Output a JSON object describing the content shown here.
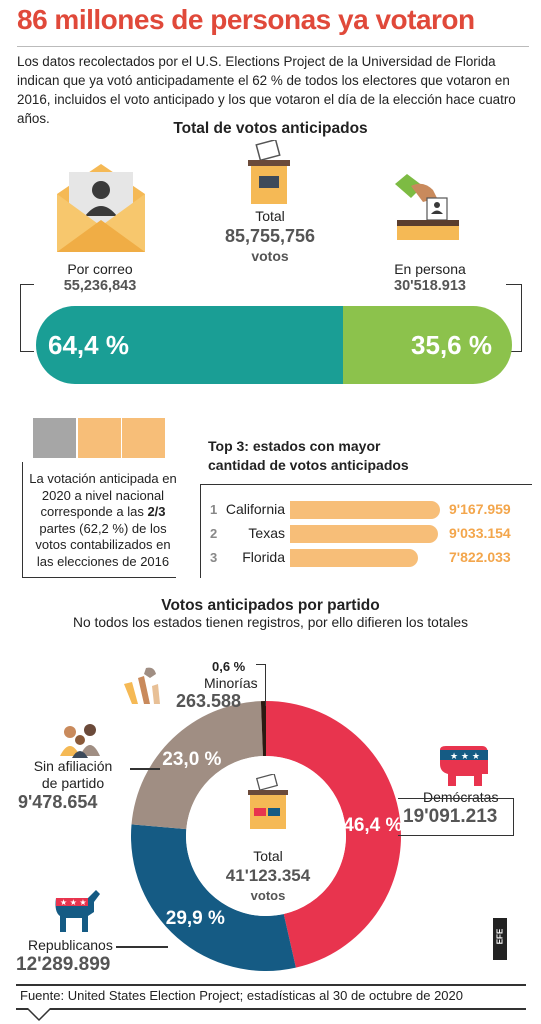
{
  "header": {
    "title": "86 millones de personas ya votaron",
    "intro": "Los datos recolectados por el U.S. Elections Project de la Universidad de Florida indican que ya votó anticipadamente el 62 % de todos los electores que votaron en 2016, incluidos el voto anticipado y los que votaron el día de la elección hace cuatro años."
  },
  "advance_votes": {
    "title": "Total de votos anticipados",
    "total_label": "Total",
    "total_value": "85,755,756",
    "total_unit": "votos",
    "mail_label": "Por correo",
    "mail_value": "55,236,843",
    "person_label": "En persona",
    "person_value": "30'518.913"
  },
  "comparison": {
    "text_before": "La votación anticipada en 2020 a nivel nacional corresponde a las ",
    "fraction": "2/3",
    "text_after": " partes (62,2 %) de los votos contabilizados en las elecciones de 2016"
  },
  "top3": {
    "title_line1": "Top 3: estados con mayor",
    "title_line2": "cantidad de votos anticipados"
  },
  "party": {
    "title": "Votos anticipados por partido",
    "subtitle": "No todos los estados tienen registros, por ello difieren los totales",
    "total_label": "Total",
    "total_value": "41'123.354",
    "total_unit": "votos",
    "labels": {
      "democrats": "Demócratas",
      "democrats_value": "19'091.213",
      "republicans": "Republicanos",
      "republicans_value": "12'289.899",
      "independent_line1": "Sin afiliación",
      "independent_line2": "de partido",
      "independent_value": "9'478.654",
      "minorities": "Minorías",
      "minorities_value": "263.588"
    }
  },
  "credit": "EFE",
  "footer": "Fuente: United States Election Project; estadísticas al 30 de octubre de 2020",
  "colors": {
    "title": "#e0493a",
    "teal": "#1a9e95",
    "green": "#8cc24c",
    "orange": "#f7be78",
    "gray": "#a6a6a6",
    "democrats": "#e8344e",
    "republicans": "#155b84",
    "independent": "#a08e83",
    "minorities": "#2b1a12"
  },
  "chart_data": [
    {
      "type": "bar",
      "title": "Total de votos anticipados",
      "categories": [
        "Por correo",
        "En persona"
      ],
      "values": [
        64.4,
        35.6
      ],
      "value_labels": [
        "64,4 %",
        "35,6 %"
      ],
      "unit": "%",
      "stacked": true
    },
    {
      "type": "bar",
      "title": "Top 3: estados con mayor cantidad de votos anticipados",
      "categories": [
        "California",
        "Texas",
        "Florida"
      ],
      "ranks": [
        "1",
        "2",
        "3"
      ],
      "values": [
        9167959,
        9033154,
        7822033
      ],
      "value_labels": [
        "9'167.959",
        "9'033.154",
        "7'822.033"
      ],
      "orientation": "horizontal"
    },
    {
      "type": "pie",
      "title": "Votos anticipados por partido",
      "categories": [
        "Demócratas",
        "Republicanos",
        "Sin afiliación de partido",
        "Minorías"
      ],
      "values": [
        46.4,
        29.9,
        23.0,
        0.6
      ],
      "value_labels": [
        "46,4 %",
        "29,9 %",
        "23,0 %",
        "0,6 %"
      ],
      "donut": true
    }
  ]
}
